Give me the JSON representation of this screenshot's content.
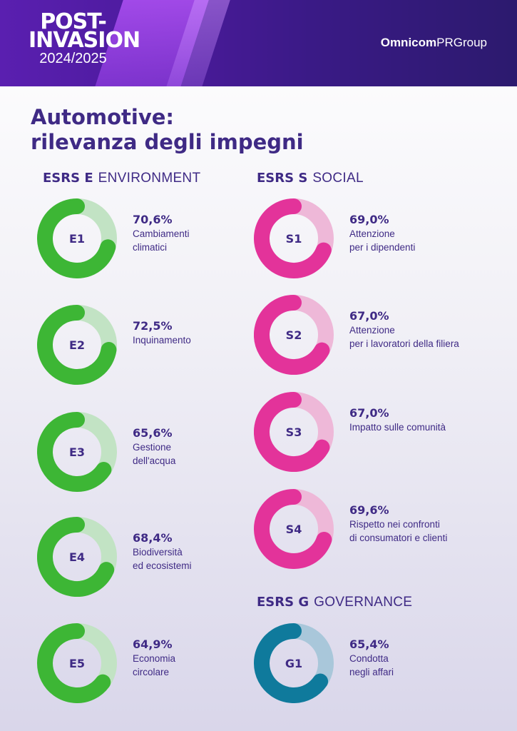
{
  "header": {
    "logo_line1": "POST-",
    "logo_line2": "INVASION",
    "logo_line3": "2024/2025",
    "brand_bold": "Omnicom",
    "brand_rest": "PRGroup"
  },
  "title_line1": "Automotive:",
  "title_line2": "rilevanza degli impegni",
  "sections": {
    "environment": {
      "code": "ESRS E",
      "name": "ENVIRONMENT"
    },
    "social": {
      "code": "ESRS S",
      "name": "SOCIAL"
    },
    "governance": {
      "code": "ESRS G",
      "name": "GOVERNANCE"
    }
  },
  "colors": {
    "environment": "#3db635",
    "environment_light": "#c2e3c4",
    "social": "#e3339a",
    "social_light": "#eeb8d8",
    "governance": "#0f7a9c",
    "governance_light": "#a9c7da",
    "text": "#3f2a85"
  },
  "chart_data": {
    "type": "donut",
    "unit": "%",
    "items": [
      {
        "code": "E1",
        "group": "environment",
        "value": 70.6,
        "value_label": "70,6%",
        "label": "Cambiamenti\nclimatici"
      },
      {
        "code": "E2",
        "group": "environment",
        "value": 72.5,
        "value_label": "72,5%",
        "label": "Inquinamento"
      },
      {
        "code": "E3",
        "group": "environment",
        "value": 65.6,
        "value_label": "65,6%",
        "label": "Gestione\ndell'acqua"
      },
      {
        "code": "E4",
        "group": "environment",
        "value": 68.4,
        "value_label": "68,4%",
        "label": "Biodiversità\ned ecosistemi"
      },
      {
        "code": "E5",
        "group": "environment",
        "value": 64.9,
        "value_label": "64,9%",
        "label": "Economia\ncircolare"
      },
      {
        "code": "S1",
        "group": "social",
        "value": 69.0,
        "value_label": "69,0%",
        "label": "Attenzione\nper i dipendenti"
      },
      {
        "code": "S2",
        "group": "social",
        "value": 67.0,
        "value_label": "67,0%",
        "label": "Attenzione\nper i lavoratori della filiera"
      },
      {
        "code": "S3",
        "group": "social",
        "value": 67.0,
        "value_label": "67,0%",
        "label": "Impatto sulle comunità"
      },
      {
        "code": "S4",
        "group": "social",
        "value": 69.6,
        "value_label": "69,6%",
        "label": "Rispetto nei confronti\ndi consumatori e clienti"
      },
      {
        "code": "G1",
        "group": "governance",
        "value": 65.4,
        "value_label": "65,4%",
        "label": "Condotta\nnegli affari"
      }
    ]
  }
}
